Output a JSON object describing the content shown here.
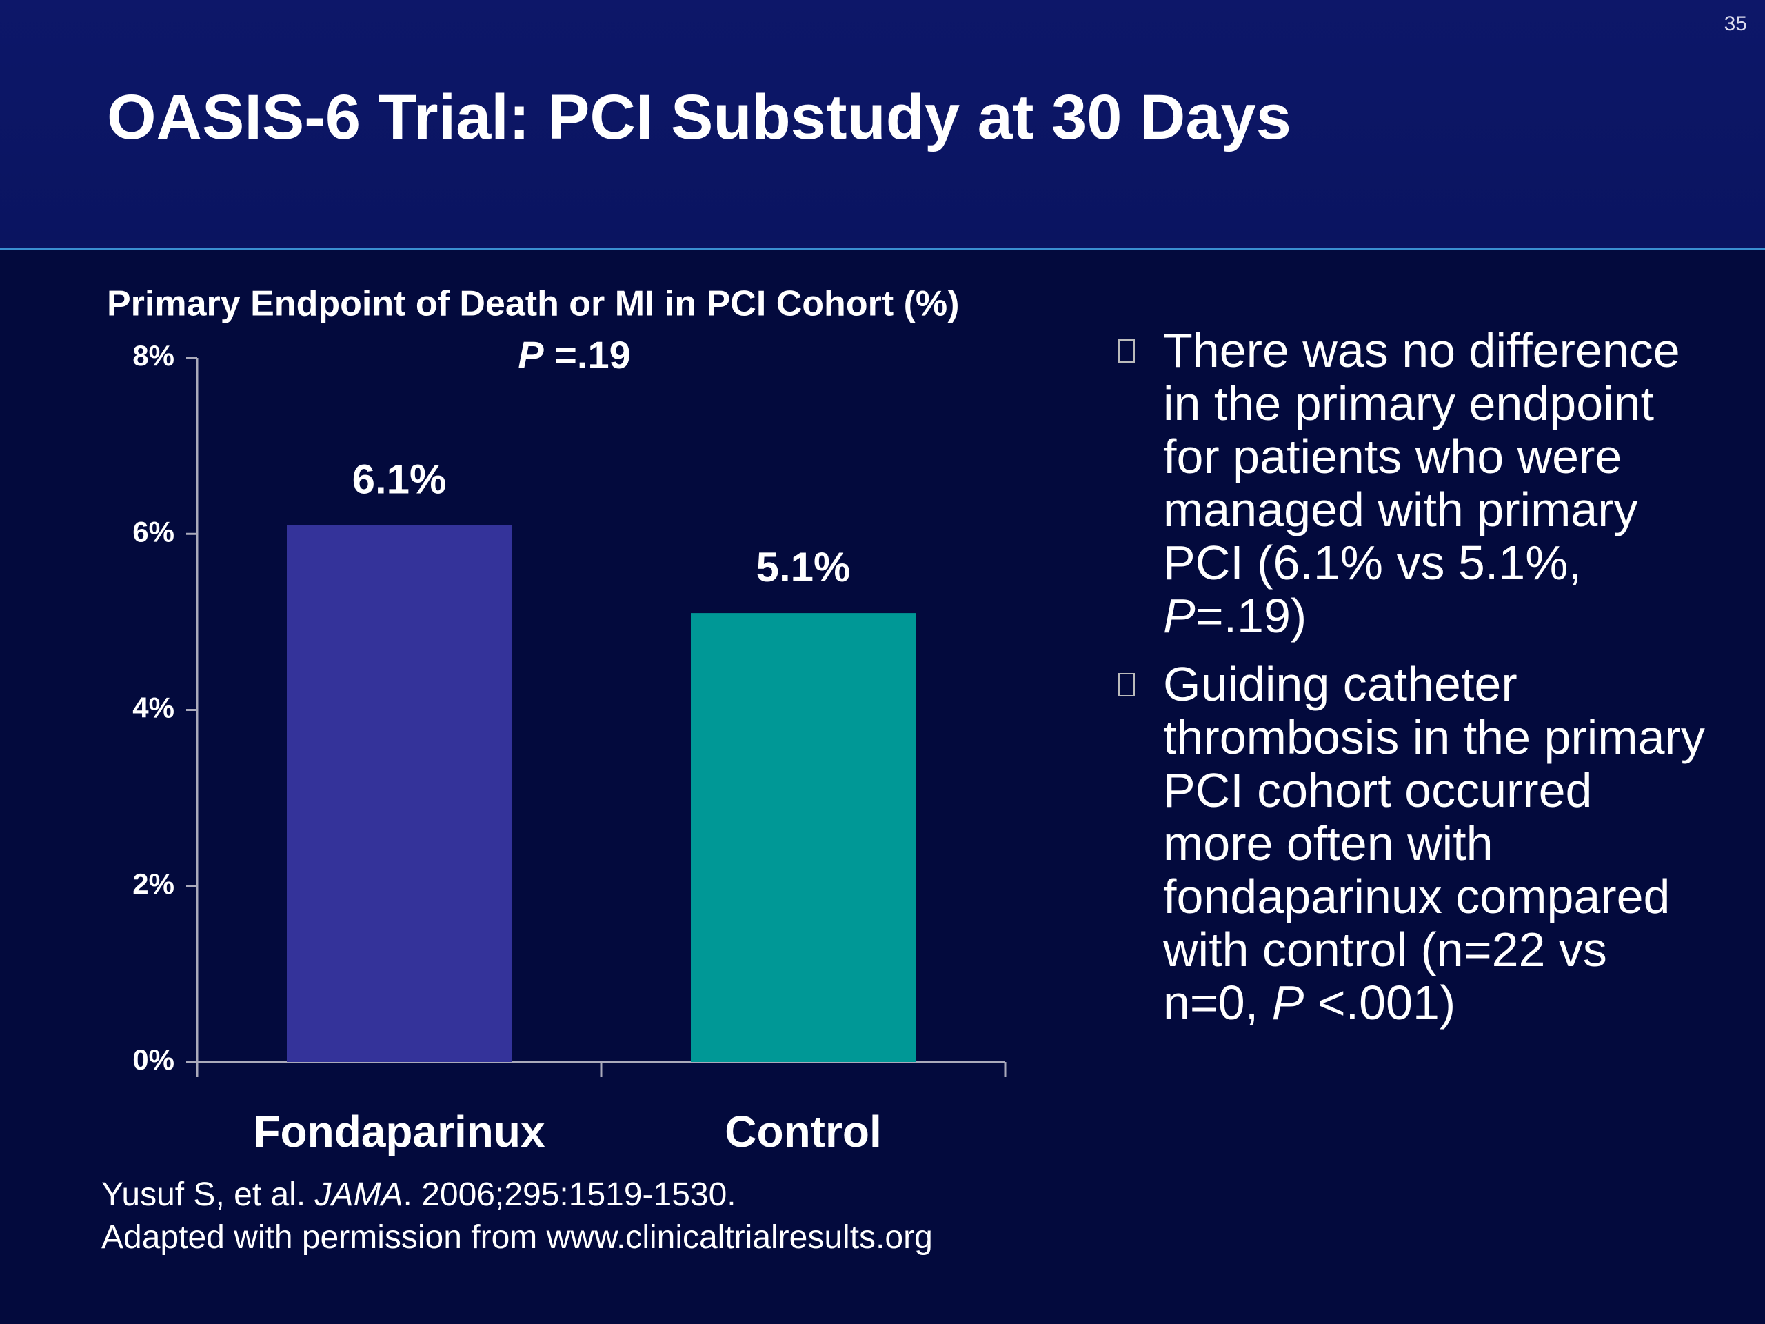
{
  "slide_number": "35",
  "title": "OASIS-6 Trial: PCI Substudy at 30 Days",
  "chart_data": {
    "type": "bar",
    "title": "Primary Endpoint of Death or MI in PCI Cohort (%)",
    "annotation": [
      {
        "text": "P",
        "italic": true
      },
      {
        "text": " =.19"
      }
    ],
    "categories": [
      "Fondaparinux",
      "Control"
    ],
    "values": [
      6.1,
      5.1
    ],
    "value_labels": [
      "6.1%",
      "5.1%"
    ],
    "colors": [
      "#34339a",
      "#009896"
    ],
    "ylim": [
      0,
      8
    ],
    "yticks": [
      {
        "value": 0,
        "label": "0%"
      },
      {
        "value": 2,
        "label": "2%"
      },
      {
        "value": 4,
        "label": "4%"
      },
      {
        "value": 6,
        "label": "6%"
      },
      {
        "value": 8,
        "label": "8%"
      }
    ],
    "grid": false
  },
  "bullets": [
    [
      {
        "text": "There was no difference in the primary endpoint for patients who were managed with primary PCI (6.1% vs 5.1%, "
      },
      {
        "text": "P",
        "italic": true
      },
      {
        "text": "=.19)"
      }
    ],
    [
      {
        "text": "Guiding catheter thrombosis in the primary PCI cohort occurred more often with fondaparinux compared with control (n=22 vs n=0, "
      },
      {
        "text": "P",
        "italic": true
      },
      {
        "text": " <.001)"
      }
    ]
  ],
  "citation": [
    [
      {
        "text": "Yusuf S, et al. "
      },
      {
        "text": "JAMA",
        "italic": true
      },
      {
        "text": ". 2006;295:1519-1530."
      }
    ],
    [
      {
        "text": "Adapted with permission from www.clinicaltrialresults.org"
      }
    ]
  ]
}
